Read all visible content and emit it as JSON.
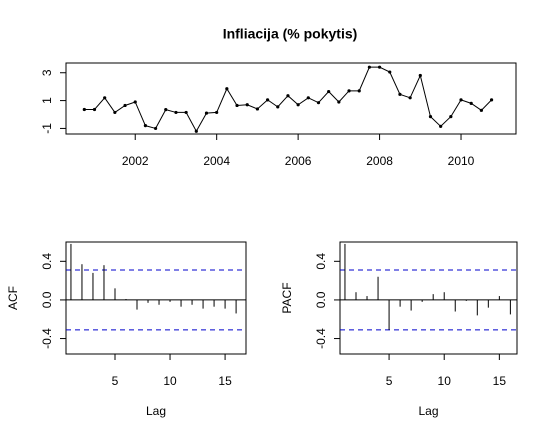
{
  "chart_data": [
    {
      "type": "line",
      "title": "Infliacija (% pokytis)",
      "color": "#000000",
      "x": [
        2000.75,
        2001,
        2001.25,
        2001.5,
        2001.75,
        2002,
        2002.25,
        2002.5,
        2002.75,
        2003,
        2003.25,
        2003.5,
        2003.75,
        2004,
        2004.25,
        2004.5,
        2004.75,
        2005,
        2005.25,
        2005.5,
        2005.75,
        2006,
        2006.25,
        2006.5,
        2006.75,
        2007,
        2007.25,
        2007.5,
        2007.75,
        2008,
        2008.25,
        2008.5,
        2008.75,
        2009,
        2009.25,
        2009.5,
        2009.75,
        2010,
        2010.25,
        2010.5,
        2010.75
      ],
      "values": [
        0.36,
        0.36,
        1.2,
        0.15,
        0.65,
        0.9,
        -0.8,
        -1.0,
        0.35,
        0.15,
        0.15,
        -1.2,
        0.1,
        0.15,
        1.85,
        0.65,
        0.7,
        0.4,
        1.05,
        0.55,
        1.35,
        0.7,
        1.2,
        0.85,
        1.65,
        0.9,
        1.7,
        1.7,
        3.4,
        3.4,
        3.05,
        1.45,
        1.2,
        2.8,
        -0.15,
        -0.85,
        -0.15,
        1.05,
        0.8,
        0.3,
        1.05
      ],
      "xlim": [
        2000.3,
        2011.35
      ],
      "xticks": [
        2002,
        2004,
        2006,
        2008,
        2010
      ],
      "ylim": [
        -1.4,
        3.7
      ],
      "yticks": [
        -1,
        1,
        3
      ]
    },
    {
      "type": "stem",
      "y_label": "ACF",
      "x_label": "Lag",
      "color": "#000000",
      "conf_color": "#0000cc",
      "conf_limit": 0.31,
      "x": [
        1,
        2,
        3,
        4,
        5,
        6,
        7,
        8,
        9,
        10,
        11,
        12,
        13,
        14,
        15,
        16
      ],
      "values": [
        0.58,
        0.37,
        0.28,
        0.36,
        0.12,
        0.01,
        -0.1,
        -0.03,
        -0.05,
        -0.02,
        -0.07,
        -0.05,
        -0.09,
        -0.07,
        -0.09,
        -0.14
      ],
      "xlim": [
        0.55,
        16.9
      ],
      "xticks": [
        5,
        10,
        15
      ],
      "ylim": [
        -0.56,
        0.6
      ],
      "yticks": [
        -0.4,
        {
          "value": 0,
          "label": "0.0"
        },
        0.4
      ]
    },
    {
      "type": "stem",
      "y_label": "PACF",
      "x_label": "Lag",
      "color": "#000000",
      "conf_color": "#0000cc",
      "conf_limit": 0.31,
      "x": [
        1,
        2,
        3,
        4,
        5,
        6,
        7,
        8,
        9,
        10,
        11,
        12,
        13,
        14,
        15,
        16
      ],
      "values": [
        0.58,
        0.08,
        0.04,
        0.24,
        -0.31,
        -0.07,
        -0.11,
        -0.02,
        0.06,
        0.08,
        -0.12,
        -0.01,
        -0.16,
        -0.08,
        0.04,
        -0.15
      ],
      "xlim": [
        0.55,
        16.6
      ],
      "xticks": [
        5,
        10,
        15
      ],
      "ylim": [
        -0.56,
        0.6
      ],
      "yticks": [
        -0.4,
        {
          "value": 0,
          "label": "0.0"
        },
        0.4
      ]
    }
  ]
}
